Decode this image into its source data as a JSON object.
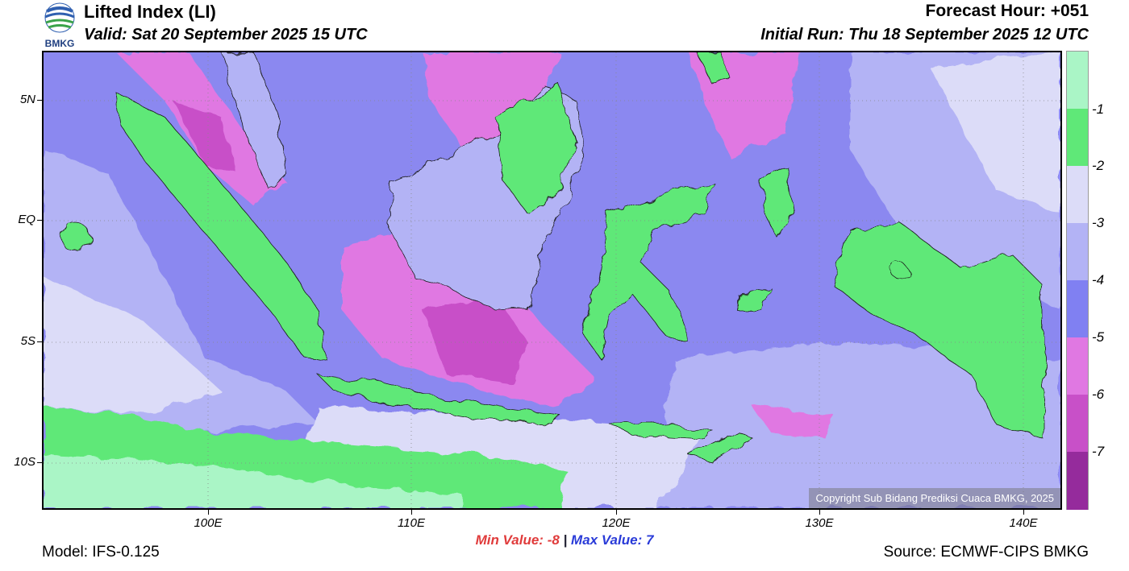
{
  "header": {
    "logo_text": "BMKG",
    "title": "Lifted Index (LI)",
    "valid": "Valid: Sat 20 September 2025 15 UTC",
    "forecast_hour": "Forecast Hour: +051",
    "initial_run": "Initial Run: Thu 18 September 2025 12 UTC"
  },
  "map": {
    "lat_labels": [
      "5N",
      "EQ",
      "5S",
      "10S"
    ],
    "lon_labels": [
      "100E",
      "110E",
      "120E",
      "130E",
      "140E"
    ],
    "copyright": "Copyright Sub Bidang Prediksi Cuaca BMKG, 2025",
    "colors": {
      "ocean_base": "#8b88f0",
      "land_green": "#5fe878",
      "light_green": "#aaf5c6",
      "magenta": "#e078e2",
      "light_lavender": "#c8c8f6"
    }
  },
  "colorbar": {
    "labels": [
      "-1",
      "-2",
      "-3",
      "-4",
      "-5",
      "-6",
      "-7"
    ],
    "colors": [
      "#aaf5c6",
      "#5fe878",
      "#dcdcf8",
      "#b3b3f5",
      "#8080f2",
      "#e078e2",
      "#c850c8",
      "#952b9c"
    ]
  },
  "footer": {
    "min_label": "Min Value:",
    "min_value": "-8",
    "separator": "|",
    "max_label": "Max Value:",
    "max_value": "7",
    "model": "Model: IFS-0.125",
    "source": "Source: ECMWF-CIPS BMKG"
  }
}
